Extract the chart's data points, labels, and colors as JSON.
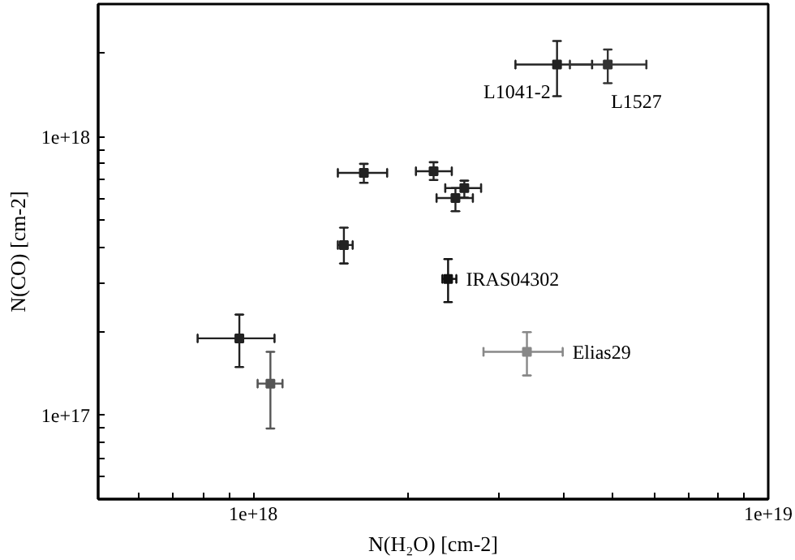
{
  "chart_data": {
    "type": "scatter",
    "xlabel": "N(H₂O) [cm-2]",
    "ylabel": "N(CO) [cm-2]",
    "log": "xy",
    "grid": false,
    "marker": "square",
    "xlim": [
      5e+17,
      1e+19
    ],
    "ylim": [
      5e+16,
      3e+18
    ],
    "xticks": [
      {
        "value": 6e+17,
        "label": null
      },
      {
        "value": 7e+17,
        "label": null
      },
      {
        "value": 8e+17,
        "label": null
      },
      {
        "value": 9e+17,
        "label": null
      },
      {
        "value": 1e+18,
        "label": "1e+18"
      },
      {
        "value": 2e+18,
        "label": null
      },
      {
        "value": 3e+18,
        "label": null
      },
      {
        "value": 4e+18,
        "label": null
      },
      {
        "value": 5e+18,
        "label": null
      },
      {
        "value": 6e+18,
        "label": null
      },
      {
        "value": 7e+18,
        "label": null
      },
      {
        "value": 8e+18,
        "label": null
      },
      {
        "value": 9e+18,
        "label": null
      },
      {
        "value": 1e+19,
        "label": "1e+19"
      }
    ],
    "yticks": [
      {
        "value": 6e+16,
        "label": null
      },
      {
        "value": 7e+16,
        "label": null
      },
      {
        "value": 8e+16,
        "label": null
      },
      {
        "value": 9e+16,
        "label": null
      },
      {
        "value": 1e+17,
        "label": "1e+17"
      },
      {
        "value": 2e+17,
        "label": null
      },
      {
        "value": 3e+17,
        "label": null
      },
      {
        "value": 4e+17,
        "label": null
      },
      {
        "value": 5e+17,
        "label": null
      },
      {
        "value": 6e+17,
        "label": null
      },
      {
        "value": 7e+17,
        "label": null
      },
      {
        "value": 8e+17,
        "label": null
      },
      {
        "value": 9e+17,
        "label": null
      },
      {
        "value": 1e+18,
        "label": "1e+18"
      },
      {
        "value": 2e+18,
        "label": null
      },
      {
        "value": 3e+18,
        "label": null
      }
    ],
    "series": [
      {
        "x": [
          3.89e+18,
          4.88e+18,
          1.64e+18,
          1.5e+18,
          2.24e+18,
          2.57e+18,
          2.47e+18,
          2.39e+18,
          3.4e+18,
          9.4e+17,
          1.08e+18
        ],
        "values": [
          1.82e+18,
          1.82e+18,
          7.43e+17,
          4.09e+17,
          7.53e+17,
          6.55e+17,
          6.03e+17,
          3.09e+17,
          1.69e+17,
          1.89e+17,
          1.3e+17
        ],
        "colors": [
          "#222222",
          "#333333",
          "#222222",
          "#222222",
          "#222222",
          "#222222",
          "#222222",
          "#111111",
          "#888888",
          "#222222",
          "#555555"
        ],
        "errors": [
          [
            1.4e+18,
            2.21e+18
          ],
          [
            1.56e+18,
            2.06e+18
          ],
          [
            6.84e+17,
            8e+17
          ],
          [
            3.51e+17,
            4.72e+17
          ],
          [
            7e+17,
            8.11e+17
          ],
          [
            6.05e+17,
            6.96e+17
          ],
          [
            5.41e+17,
            6.55e+17
          ],
          [
            2.55e+17,
            3.64e+17
          ],
          [
            1.39e+17,
            1.99e+17
          ],
          [
            1.49e+17,
            2.3e+17
          ],
          [
            8.97e+16,
            1.69e+17
          ]
        ],
        "xerrors": [
          [
            3.23e+18,
            4.55e+18
          ],
          [
            4.12e+18,
            5.8e+18
          ],
          [
            1.46e+18,
            1.82e+18
          ],
          [
            1.46e+18,
            1.56e+18
          ],
          [
            2.07e+18,
            2.43e+18
          ],
          [
            2.36e+18,
            2.77e+18
          ],
          [
            2.27e+18,
            2.67e+18
          ],
          [
            2.33e+18,
            2.48e+18
          ],
          [
            2.8e+18,
            3.99e+18
          ],
          [
            7.8e+17,
            1.1e+18
          ],
          [
            1.02e+18,
            1.14e+18
          ]
        ]
      }
    ],
    "annotations": [
      {
        "text": "L1041-2",
        "x": 3.89e+18,
        "y": 1.82e+18
      },
      {
        "text": "L1527",
        "x": 4.88e+18,
        "y": 1.82e+18
      },
      {
        "text": "IRAS04302",
        "x": 2.39e+18,
        "y": 3.09e+17
      },
      {
        "text": "Elias29",
        "x": 3.4e+18,
        "y": 1.69e+17
      }
    ]
  }
}
